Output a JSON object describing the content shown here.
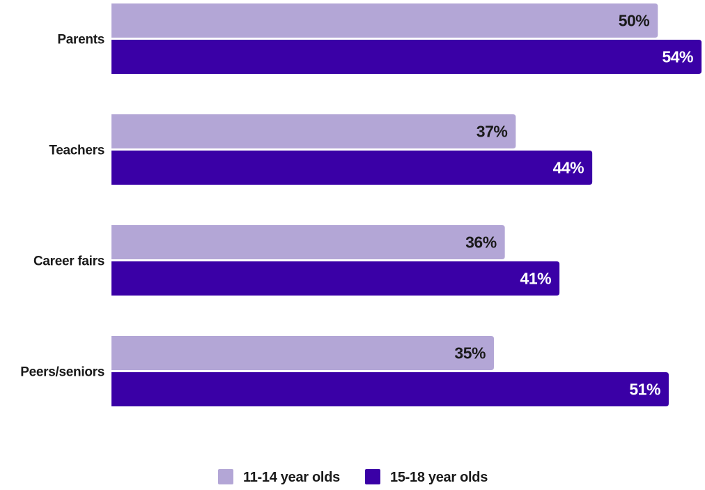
{
  "chart_data": {
    "type": "bar",
    "orientation": "horizontal",
    "categories": [
      "Parents",
      "Teachers",
      "Career fairs",
      "Peers/seniors"
    ],
    "series": [
      {
        "name": "11-14 year olds",
        "values": [
          50,
          37,
          36,
          35
        ],
        "color": "#b3a6d6",
        "label_color": "#1a1a1a"
      },
      {
        "name": "15-18 year olds",
        "values": [
          54,
          44,
          41,
          51
        ],
        "color": "#3a00a6",
        "label_color": "#ffffff"
      }
    ],
    "value_suffix": "%",
    "xlim": [
      0,
      54
    ],
    "legend_position": "bottom",
    "grid": false,
    "data_labels": true
  }
}
